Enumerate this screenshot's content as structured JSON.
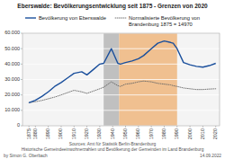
{
  "chart_data": {
    "type": "line",
    "title": "Eberswalde: Bevölkerungsentwicklung seit 1875 - Grenzen von 2020",
    "x": [
      1875,
      1880,
      1885,
      1890,
      1895,
      1900,
      1905,
      1910,
      1916,
      1920,
      1925,
      1930,
      1933,
      1939,
      1944,
      1946,
      1950,
      1955,
      1960,
      1964,
      1970,
      1975,
      1980,
      1985,
      1987,
      1990,
      1995,
      2000,
      2005,
      2010,
      2015,
      2020
    ],
    "series": [
      {
        "name": "Normalisierte Bevölkerung von\nBrandenburg 1875 = 14970",
        "color": "#666666",
        "line_style": "dotted",
        "values": [
          14970,
          15600,
          16400,
          17500,
          18600,
          20000,
          21500,
          23000,
          22000,
          21000,
          22500,
          24000,
          25000,
          28500,
          26000,
          25500,
          27000,
          27500,
          28500,
          29000,
          28500,
          27500,
          27000,
          26500,
          26000,
          25500,
          24500,
          24000,
          23500,
          23500,
          23800,
          24000
        ]
      },
      {
        "name": "Bevölkerung von Eberswalde",
        "color": "#1a4f9c",
        "line_style": "solid",
        "values": [
          14970,
          16500,
          19000,
          22000,
          25500,
          28000,
          31000,
          34000,
          35000,
          33000,
          36500,
          40000,
          40500,
          50000,
          40500,
          40000,
          41000,
          42000,
          43500,
          45500,
          50000,
          53500,
          55000,
          54000,
          53500,
          50000,
          41000,
          39500,
          38500,
          38000,
          39000,
          40500
        ]
      }
    ],
    "spans": [
      {
        "start": 1933,
        "end": 1945,
        "color": "#c0c0c0"
      },
      {
        "start": 1945,
        "end": 1990,
        "color": "#f0c090"
      }
    ],
    "xlim": [
      1870,
      2023
    ],
    "xticks": [
      1875,
      1880,
      1890,
      1900,
      1910,
      1920,
      1930,
      1940,
      1950,
      1960,
      1970,
      1980,
      1990,
      2000,
      2010,
      2020
    ],
    "ylim": [
      0,
      60000
    ],
    "yticks": [
      0,
      {
        "value": 10000,
        "label": "10.000"
      },
      {
        "value": 20000,
        "label": "20.000"
      },
      {
        "value": 30000,
        "label": "30.000"
      },
      {
        "value": 40000,
        "label": "40.000"
      },
      {
        "value": 50000,
        "label": "50.000"
      },
      {
        "value": 60000,
        "label": "60.000"
      }
    ],
    "grid": true,
    "legend": "top",
    "source": [
      "Sources: Amt für Statistik Berlin-Brandenburg",
      "Historische Gemeindeeinwohnerzahlen und Bevölkerung der Gemeinden im Land Brandenburg"
    ],
    "author": "by Simon G. Oberbach",
    "date": "14.09.2022"
  }
}
